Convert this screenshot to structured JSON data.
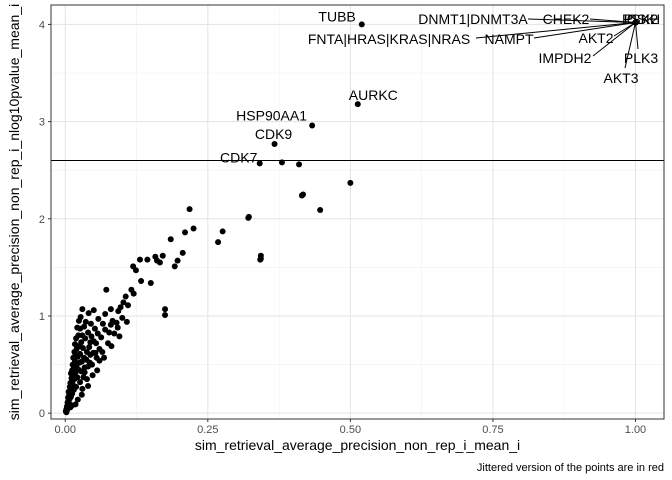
{
  "chart_data": {
    "type": "scatter",
    "xlabel": "sim_retrieval_average_precision_non_rep_i_mean_i",
    "ylabel": "sim_retrieval_average_precision_non_rep_i_nlog10pvalue_mean_i",
    "caption": "Jittered version of the points are in red",
    "xlim": [
      -0.025,
      1.05
    ],
    "ylim": [
      -0.06,
      4.2
    ],
    "xticks": [
      0.0,
      0.25,
      0.5,
      0.75,
      1.0
    ],
    "xtick_labels": [
      "0.00",
      "0.25",
      "0.50",
      "0.75",
      "1.00"
    ],
    "yticks": [
      0,
      1,
      2,
      3,
      4
    ],
    "ytick_labels": [
      "0",
      "1",
      "2",
      "3",
      "4"
    ],
    "grid": true,
    "hline": 2.6,
    "point_color": "#000000",
    "labeled_points": [
      {
        "label": "TUBB",
        "x": 0.52,
        "y": 4.0
      },
      {
        "label": "AURKC",
        "x": 0.513,
        "y": 3.18
      },
      {
        "label": "HSP90AA1",
        "x": 0.433,
        "y": 2.96
      },
      {
        "label": "CDK9",
        "x": 0.367,
        "y": 2.77
      },
      {
        "label": "CDK7",
        "x": 0.341,
        "y": 2.57
      },
      {
        "label": "DNMT1|DNMT3A",
        "x": 1.0,
        "y": 4.02
      },
      {
        "label": "CHEK2",
        "x": 1.0,
        "y": 4.02
      },
      {
        "label": "FNTA|HRAS|KRAS|NRAS",
        "x": 1.0,
        "y": 4.02
      },
      {
        "label": "NAMPT",
        "x": 1.0,
        "y": 4.02
      },
      {
        "label": "AKT2",
        "x": 1.0,
        "y": 4.02
      },
      {
        "label": "IMPDH2",
        "x": 1.0,
        "y": 4.02
      },
      {
        "label": "AKT3",
        "x": 1.0,
        "y": 4.02
      },
      {
        "label": "PLK3",
        "x": 1.0,
        "y": 4.02
      },
      {
        "label": "PLK2",
        "x": 1.0,
        "y": 4.02
      },
      {
        "label": "CSK",
        "x": 1.0,
        "y": 4.02
      },
      {
        "label": "PSKH",
        "x": 1.0,
        "y": 4.02
      }
    ],
    "points": [
      [
        0.5,
        2.37
      ],
      [
        0.41,
        2.56
      ],
      [
        0.38,
        2.58
      ],
      [
        0.417,
        2.25
      ],
      [
        0.415,
        2.24
      ],
      [
        0.447,
        2.09
      ],
      [
        0.322,
        2.02
      ],
      [
        0.321,
        2.01
      ],
      [
        0.343,
        1.62
      ],
      [
        0.342,
        1.58
      ],
      [
        0.343,
        1.59
      ],
      [
        0.276,
        1.87
      ],
      [
        0.268,
        1.76
      ],
      [
        0.225,
        1.9
      ],
      [
        0.218,
        2.1
      ],
      [
        0.21,
        1.86
      ],
      [
        0.206,
        1.65
      ],
      [
        0.197,
        1.57
      ],
      [
        0.185,
        1.79
      ],
      [
        0.192,
        1.51
      ],
      [
        0.175,
        1.07
      ],
      [
        0.175,
        1.01
      ],
      [
        0.171,
        1.62
      ],
      [
        0.166,
        1.55
      ],
      [
        0.161,
        1.57
      ],
      [
        0.158,
        1.61
      ],
      [
        0.15,
        1.34
      ],
      [
        0.144,
        1.58
      ],
      [
        0.133,
        1.36
      ],
      [
        0.131,
        1.58
      ],
      [
        0.124,
        1.47
      ],
      [
        0.119,
        1.51
      ],
      [
        0.116,
        1.27
      ],
      [
        0.12,
        1.23
      ],
      [
        0.11,
        1.11
      ],
      [
        0.106,
        1.2
      ],
      [
        0.102,
        1.14
      ],
      [
        0.097,
        1.09
      ],
      [
        0.1,
        0.98
      ],
      [
        0.093,
        1.05
      ],
      [
        0.09,
        0.93
      ],
      [
        0.092,
        0.88
      ],
      [
        0.086,
        0.82
      ],
      [
        0.083,
        0.95
      ],
      [
        0.08,
        1.07
      ],
      [
        0.08,
        0.91
      ],
      [
        0.077,
        0.83
      ],
      [
        0.075,
        0.72
      ],
      [
        0.072,
        1.27
      ],
      [
        0.07,
        0.86
      ],
      [
        0.07,
        1.02
      ],
      [
        0.066,
        0.92
      ],
      [
        0.065,
        0.63
      ],
      [
        0.063,
        0.78
      ],
      [
        0.06,
        0.66
      ],
      [
        0.058,
        0.97
      ],
      [
        0.057,
        0.82
      ],
      [
        0.055,
        0.57
      ],
      [
        0.054,
        0.72
      ],
      [
        0.052,
        0.87
      ],
      [
        0.05,
        1.06
      ],
      [
        0.05,
        0.74
      ],
      [
        0.049,
        0.62
      ],
      [
        0.047,
        0.5
      ],
      [
        0.046,
        0.79
      ],
      [
        0.045,
        0.92
      ],
      [
        0.044,
        0.73
      ],
      [
        0.043,
        0.52
      ],
      [
        0.042,
        0.68
      ],
      [
        0.041,
        1.03
      ],
      [
        0.04,
        0.48
      ],
      [
        0.04,
        0.83
      ],
      [
        0.038,
        0.63
      ],
      [
        0.037,
        0.55
      ],
      [
        0.036,
        0.94
      ],
      [
        0.035,
        0.77
      ],
      [
        0.034,
        0.47
      ],
      [
        0.033,
        0.57
      ],
      [
        0.033,
        0.89
      ],
      [
        0.032,
        0.37
      ],
      [
        0.031,
        0.67
      ],
      [
        0.03,
        0.8
      ],
      [
        0.03,
        1.07
      ],
      [
        0.029,
        0.53
      ],
      [
        0.028,
        0.43
      ],
      [
        0.028,
        0.73
      ],
      [
        0.027,
        0.99
      ],
      [
        0.026,
        0.61
      ],
      [
        0.026,
        0.87
      ],
      [
        0.025,
        0.52
      ],
      [
        0.024,
        0.69
      ],
      [
        0.024,
        0.95
      ],
      [
        0.023,
        0.45
      ],
      [
        0.023,
        0.8
      ],
      [
        0.022,
        0.58
      ],
      [
        0.021,
        0.37
      ],
      [
        0.021,
        0.88
      ],
      [
        0.02,
        0.66
      ],
      [
        0.02,
        0.5
      ],
      [
        0.019,
        0.77
      ],
      [
        0.019,
        0.27
      ],
      [
        0.018,
        0.6
      ],
      [
        0.018,
        0.42
      ],
      [
        0.017,
        0.71
      ],
      [
        0.017,
        0.53
      ],
      [
        0.016,
        0.35
      ],
      [
        0.016,
        0.63
      ],
      [
        0.015,
        0.24
      ],
      [
        0.015,
        0.47
      ],
      [
        0.014,
        0.57
      ],
      [
        0.014,
        0.39
      ],
      [
        0.013,
        0.3
      ],
      [
        0.013,
        0.5
      ],
      [
        0.012,
        0.44
      ],
      [
        0.012,
        0.2
      ],
      [
        0.011,
        0.36
      ],
      [
        0.011,
        0.27
      ],
      [
        0.01,
        0.41
      ],
      [
        0.01,
        0.17
      ],
      [
        0.009,
        0.31
      ],
      [
        0.009,
        0.23
      ],
      [
        0.008,
        0.15
      ],
      [
        0.008,
        0.27
      ],
      [
        0.007,
        0.19
      ],
      [
        0.007,
        0.1
      ],
      [
        0.006,
        0.13
      ],
      [
        0.006,
        0.22
      ],
      [
        0.005,
        0.08
      ],
      [
        0.005,
        0.16
      ],
      [
        0.004,
        0.11
      ],
      [
        0.004,
        0.05
      ],
      [
        0.003,
        0.07
      ],
      [
        0.003,
        0.03
      ],
      [
        0.002,
        0.04
      ],
      [
        0.002,
        0.01
      ],
      [
        0.001,
        0.02
      ],
      [
        0.026,
        0.32
      ],
      [
        0.03,
        0.25
      ],
      [
        0.034,
        0.42
      ],
      [
        0.022,
        0.14
      ],
      [
        0.038,
        0.35
      ],
      [
        0.044,
        0.6
      ],
      [
        0.06,
        0.54
      ],
      [
        0.068,
        0.57
      ],
      [
        0.056,
        0.44
      ],
      [
        0.018,
        0.09
      ],
      [
        0.012,
        0.08
      ],
      [
        0.009,
        0.06
      ],
      [
        0.029,
        0.19
      ],
      [
        0.04,
        0.28
      ],
      [
        0.048,
        0.39
      ],
      [
        0.053,
        0.62
      ],
      [
        0.081,
        0.69
      ],
      [
        0.095,
        0.79
      ],
      [
        0.108,
        0.94
      ]
    ]
  }
}
